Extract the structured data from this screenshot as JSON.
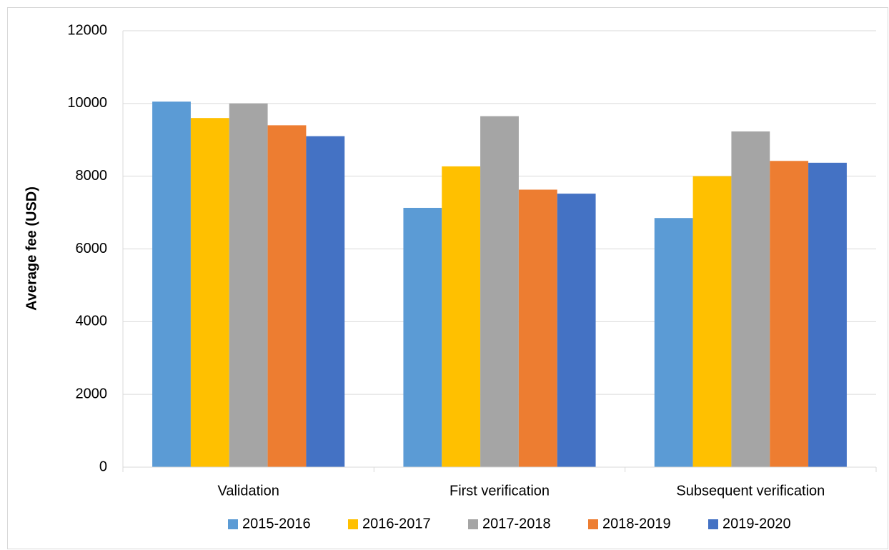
{
  "chart_data": {
    "type": "bar",
    "y_label": "Average fee (USD)",
    "categories": [
      "Validation",
      "First verification",
      "Subsequent verification"
    ],
    "series": [
      {
        "name": "2015-2016",
        "color": "#5b9bd5",
        "values": [
          10050,
          7130,
          6850
        ]
      },
      {
        "name": "2016-2017",
        "color": "#ffc000",
        "values": [
          9600,
          8270,
          8000
        ]
      },
      {
        "name": "2017-2018",
        "color": "#a5a5a5",
        "values": [
          10000,
          9650,
          9230
        ]
      },
      {
        "name": "2018-2019",
        "color": "#ed7d31",
        "values": [
          9400,
          7630,
          8420
        ]
      },
      {
        "name": "2019-2020",
        "color": "#4472c4",
        "values": [
          9100,
          7520,
          8370
        ]
      }
    ],
    "ylim": [
      0,
      12000
    ],
    "yticks": [
      0,
      2000,
      4000,
      6000,
      8000,
      10000,
      12000
    ],
    "grid": true,
    "legend": "bottom"
  }
}
